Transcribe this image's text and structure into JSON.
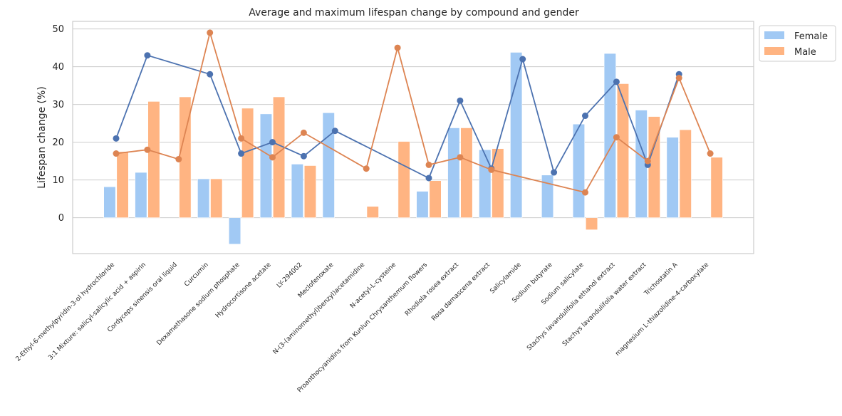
{
  "chart_data": {
    "type": "bar",
    "title": "Average and maximum lifespan change by compound and gender",
    "xlabel": "",
    "ylabel": "Lifespan change (%)",
    "ylim": [
      -9.5,
      52
    ],
    "yticks": [
      0,
      10,
      20,
      30,
      40,
      50
    ],
    "grid": true,
    "legend_position": "top-right",
    "categories": [
      "2-Ethyl-6-methylpyridin-3-ol hydrochloride",
      "3:1 Mixture: salicyl-salicylic acid + aspirin",
      "Cordyceps sinensis oral liquid",
      "Curcumin",
      "Dexamethasone sodium phosphate",
      "Hydrocortisone acetate",
      "LY-294002",
      "Meclofenoxate",
      "N-(3-(aminomethyl)benzyl)acetamidine",
      "N-acetyl-L-cysteine",
      "Proanthocyanidins from Kunlun Chrysanthemum flowers",
      "Rhodiola rosea extract",
      "Rosa damascena extract",
      "Salicylamide",
      "Sodium butyrate",
      "Sodium salicylate",
      "Stachys lavandulifolia ethanol extract",
      "Stachys lavandulifolia water extract",
      "Trichostatin A",
      "magnesium L-thiazolidine-4-carboxylate"
    ],
    "series": [
      {
        "name": "Female",
        "kind": "bar",
        "color": "#a1c9f4",
        "values": [
          8.2,
          12,
          null,
          10.3,
          -7,
          27.5,
          14.2,
          27.8,
          null,
          null,
          7,
          23.8,
          18,
          43.8,
          11.3,
          24.8,
          43.5,
          28.5,
          21.3,
          null
        ]
      },
      {
        "name": "Male",
        "kind": "bar",
        "color": "#ffb482",
        "values": [
          17.5,
          30.8,
          32,
          10.3,
          29,
          32,
          13.8,
          null,
          3,
          20.2,
          9.8,
          23.8,
          18.3,
          null,
          null,
          -3.2,
          35.5,
          26.8,
          23.3,
          16
        ]
      },
      {
        "name": "",
        "kind": "line",
        "color": "#4c72b0",
        "values": [
          21,
          43,
          null,
          38,
          17,
          20,
          16.3,
          23,
          null,
          null,
          10.5,
          31,
          13,
          42,
          12,
          27,
          36,
          14,
          38,
          null
        ]
      },
      {
        "name": "",
        "kind": "line",
        "color": "#dd8452",
        "values": [
          17,
          18,
          15.5,
          49,
          21,
          16,
          22.5,
          null,
          13,
          45,
          14,
          16,
          12.7,
          null,
          null,
          6.7,
          21.3,
          15,
          37,
          17
        ]
      }
    ]
  }
}
